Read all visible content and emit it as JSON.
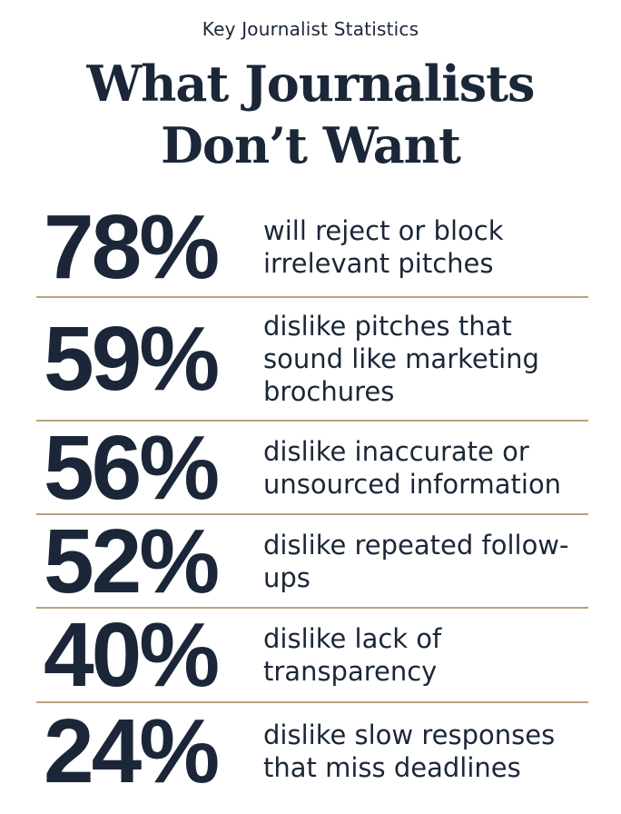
{
  "header": {
    "kicker": "Key Journalist Statistics",
    "title_line_1": "What Journalists",
    "title_line_2": "Don’t Want"
  },
  "stats": [
    {
      "value": "78%",
      "text": "will reject or block irrelevant pitches"
    },
    {
      "value": "59%",
      "text": "dislike pitches that sound like marketing brochures"
    },
    {
      "value": "56%",
      "text": "dislike inaccurate or unsourced information"
    },
    {
      "value": "52%",
      "text": "dislike repeated follow-ups"
    },
    {
      "value": "40%",
      "text": "dislike lack of transparency"
    },
    {
      "value": "24%",
      "text": "dislike slow responses that miss deadlines"
    }
  ],
  "colors": {
    "text": "#1b2738",
    "divider": "#b9a27a",
    "background": "#ffffff"
  }
}
